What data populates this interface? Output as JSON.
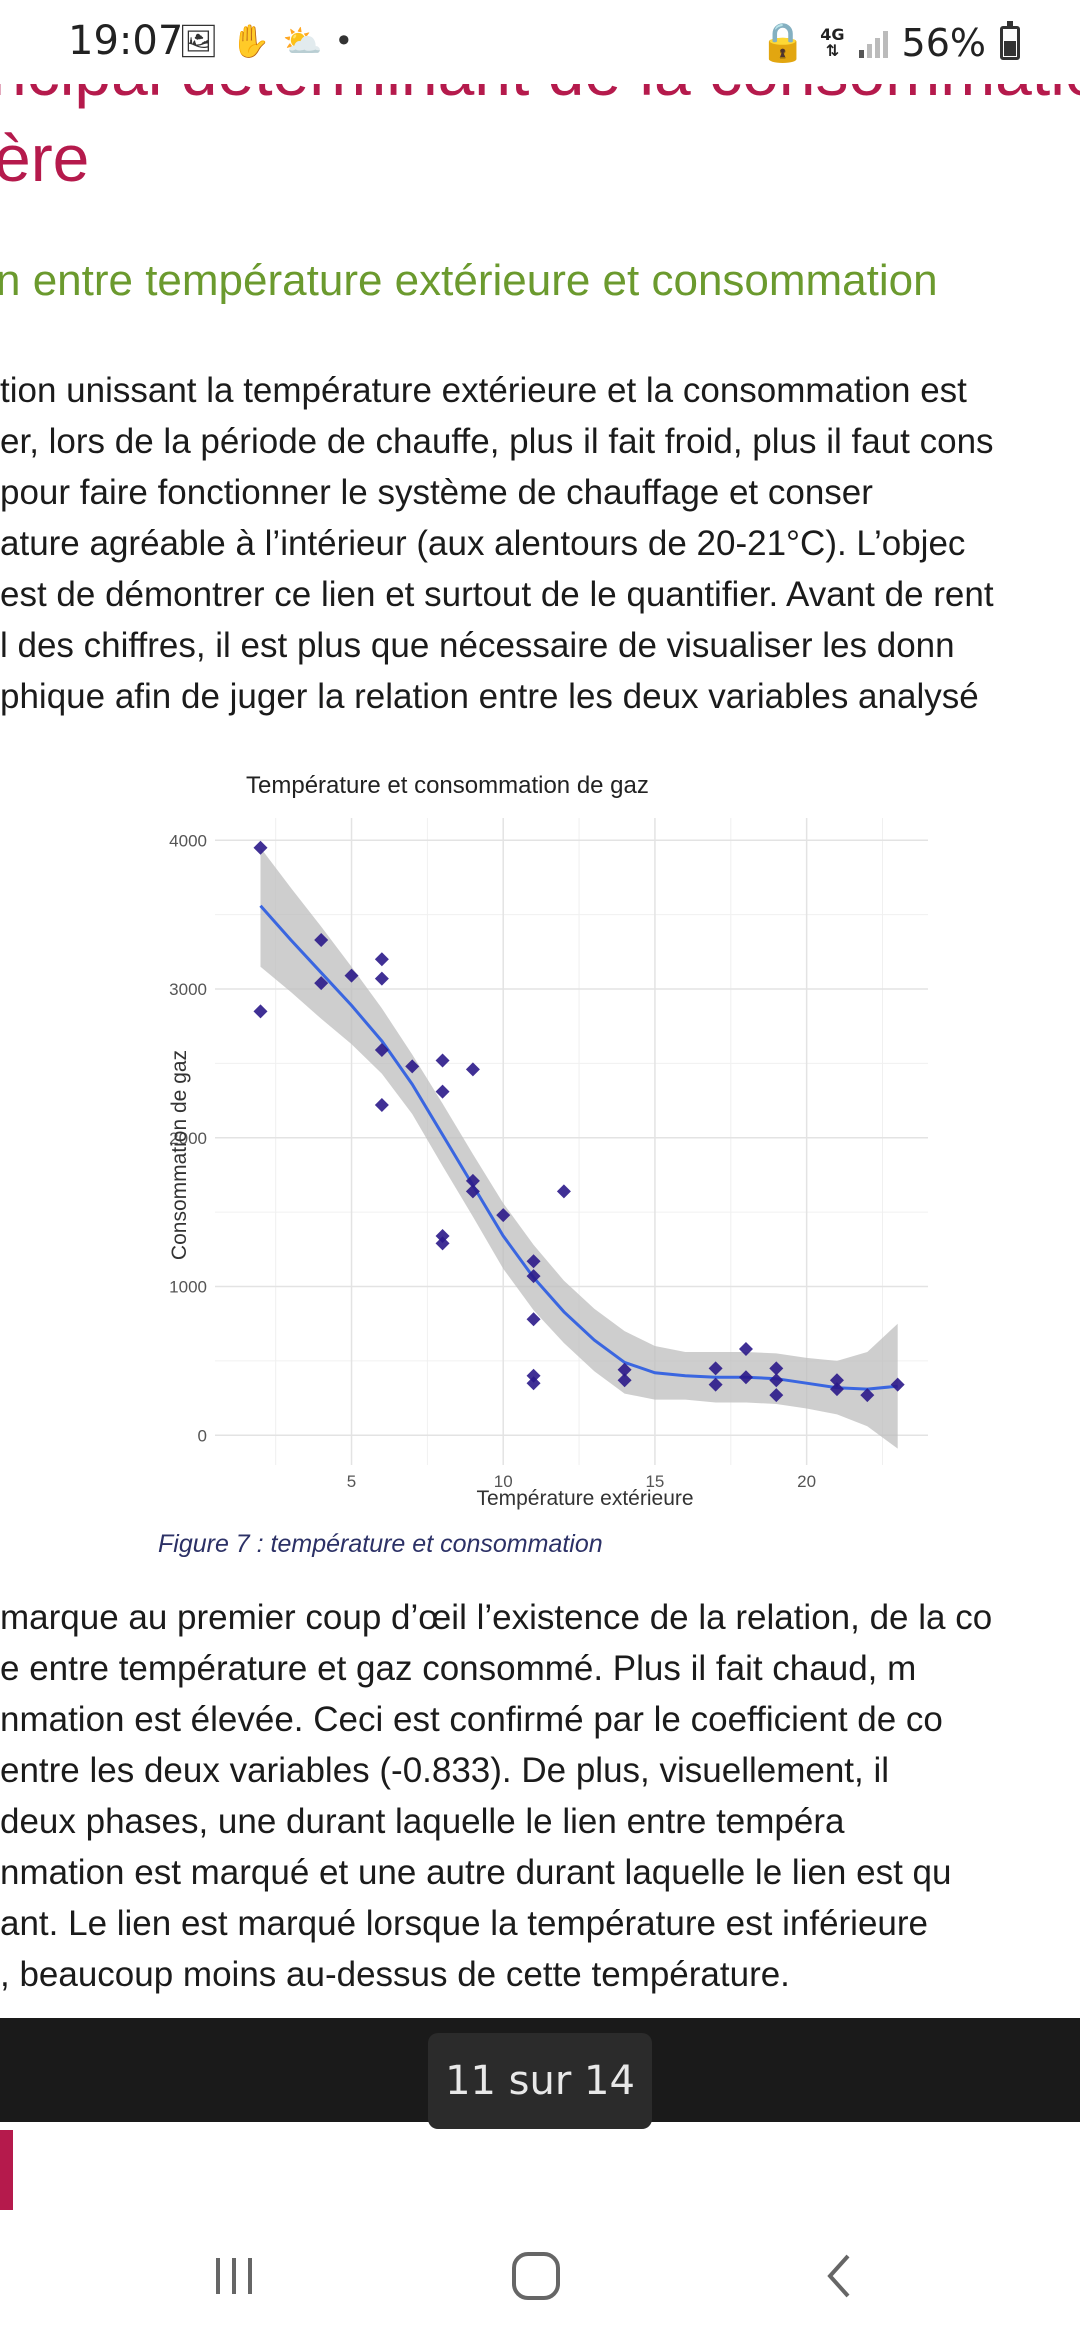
{
  "status_bar": {
    "time": "19:07",
    "left_icons": [
      "gallery-icon",
      "hand-icon",
      "weather-icon",
      "dot-icon"
    ],
    "network": "4G",
    "battery": "56%"
  },
  "document": {
    "heading_line1": "ncipal déterminant de la consommation",
    "heading_line2": "ère",
    "subheading": "n entre température extérieure et consommation",
    "paragraph1": [
      "tion unissant la température extérieure et la consommation est",
      "er, lors de la période de chauffe, plus il fait froid, plus il faut cons",
      " pour faire fonctionner le système de chauffage et conser",
      "ature agréable à l’intérieur (aux alentours de 20-21°C). L’objec",
      "est de démontrer ce lien et surtout de le quantifier. Avant de rent",
      "l des chiffres, il est plus que nécessaire de visualiser les donn",
      "phique afin de juger la relation entre les deux variables analysé"
    ],
    "figure_caption": "Figure 7 : température et consommation",
    "paragraph2": [
      "marque au premier coup d’œil l’existence de la relation, de la co",
      "e entre température et gaz consommé. Plus il fait chaud, m",
      "nmation est élevée. Ceci est confirmé par le coefficient de co",
      " entre les deux variables (-0.833). De plus, visuellement, il",
      " deux phases, une durant laquelle le lien entre tempéra",
      "nmation est marqué et une autre durant laquelle le lien est qu",
      "ant. Le lien est marqué lorsque la température est inférieure",
      ", beaucoup moins au-dessus de cette température."
    ]
  },
  "chart_data": {
    "type": "scatter",
    "title": "Température et consommation de gaz",
    "xlabel": "Température extérieure",
    "ylabel": "Consommation de gaz",
    "xlim": [
      0.5,
      24
    ],
    "ylim": [
      -200,
      4150
    ],
    "xticks": [
      5,
      10,
      15,
      20
    ],
    "yticks": [
      0,
      1000,
      2000,
      3000,
      4000
    ],
    "grid": true,
    "points": [
      {
        "x": 2,
        "y": 3950
      },
      {
        "x": 2,
        "y": 2850
      },
      {
        "x": 4,
        "y": 3330
      },
      {
        "x": 4,
        "y": 3040
      },
      {
        "x": 5,
        "y": 3090
      },
      {
        "x": 6,
        "y": 3200
      },
      {
        "x": 6,
        "y": 3070
      },
      {
        "x": 6,
        "y": 2590
      },
      {
        "x": 6,
        "y": 2220
      },
      {
        "x": 7,
        "y": 2480
      },
      {
        "x": 8,
        "y": 2520
      },
      {
        "x": 8,
        "y": 2310
      },
      {
        "x": 8,
        "y": 1340
      },
      {
        "x": 8,
        "y": 1290
      },
      {
        "x": 9,
        "y": 2460
      },
      {
        "x": 9,
        "y": 1710
      },
      {
        "x": 9,
        "y": 1640
      },
      {
        "x": 10,
        "y": 1480
      },
      {
        "x": 11,
        "y": 1170
      },
      {
        "x": 11,
        "y": 1070
      },
      {
        "x": 11,
        "y": 780
      },
      {
        "x": 11,
        "y": 400
      },
      {
        "x": 11,
        "y": 350
      },
      {
        "x": 12,
        "y": 1640
      },
      {
        "x": 14,
        "y": 440
      },
      {
        "x": 14,
        "y": 370
      },
      {
        "x": 17,
        "y": 450
      },
      {
        "x": 17,
        "y": 340
      },
      {
        "x": 18,
        "y": 580
      },
      {
        "x": 18,
        "y": 390
      },
      {
        "x": 19,
        "y": 450
      },
      {
        "x": 19,
        "y": 370
      },
      {
        "x": 19,
        "y": 270
      },
      {
        "x": 21,
        "y": 370
      },
      {
        "x": 21,
        "y": 310
      },
      {
        "x": 22,
        "y": 270
      },
      {
        "x": 23,
        "y": 340
      }
    ],
    "smooth": {
      "x": [
        2,
        3,
        4,
        5,
        6,
        7,
        8,
        9,
        10,
        11,
        12,
        13,
        14,
        15,
        16,
        17,
        18,
        19,
        20,
        21,
        22,
        23
      ],
      "y": [
        3560,
        3330,
        3110,
        2890,
        2650,
        2360,
        2020,
        1680,
        1340,
        1060,
        830,
        640,
        490,
        420,
        400,
        390,
        390,
        380,
        350,
        320,
        310,
        330
      ],
      "upper": [
        3950,
        3680,
        3420,
        3150,
        2870,
        2560,
        2230,
        1890,
        1560,
        1280,
        1040,
        850,
        700,
        600,
        560,
        560,
        560,
        550,
        520,
        500,
        560,
        750
      ],
      "lower": [
        3150,
        2980,
        2800,
        2630,
        2430,
        2160,
        1810,
        1470,
        1120,
        840,
        620,
        430,
        280,
        240,
        240,
        220,
        220,
        210,
        180,
        140,
        60,
        -90
      ]
    },
    "point_color": "#2b1a8a",
    "line_color": "#3a66e0",
    "band_color": "#bdbdbd"
  },
  "pager": {
    "label": "11 sur 14"
  },
  "nav": {
    "recent_icon": "recent-apps-icon",
    "home_icon": "home-icon",
    "back_icon": "back-icon"
  }
}
